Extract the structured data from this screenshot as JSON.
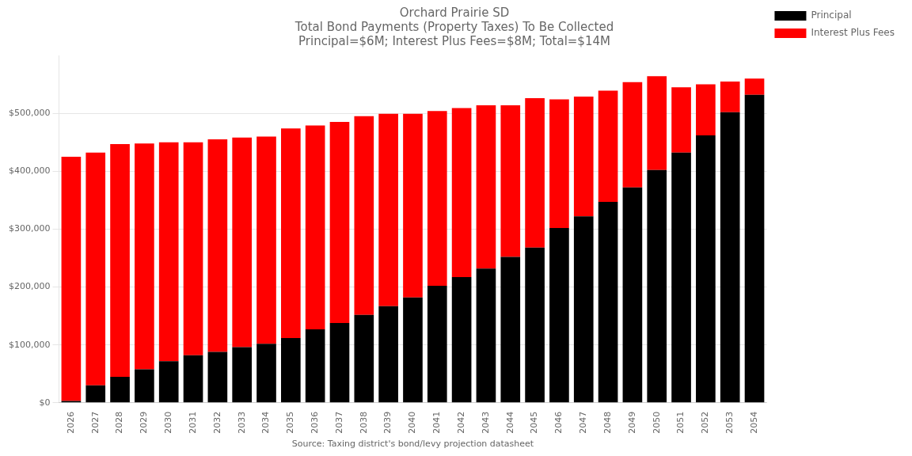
{
  "chart_data": {
    "type": "bar",
    "title": "Orchard Prairie SD\nTotal Bond Payments (Property Taxes) To Be Collected\nPrincipal=$6M; Interest Plus Fees=$8M; Total=$14M",
    "xlabel": "Source: Taxing district's bond/levy projection datasheet",
    "categories": [
      "2026",
      "2027",
      "2028",
      "2029",
      "2030",
      "2031",
      "2032",
      "2033",
      "2034",
      "2035",
      "2036",
      "2037",
      "2038",
      "2039",
      "2040",
      "2041",
      "2042",
      "2043",
      "2044",
      "2045",
      "2046",
      "2047",
      "2048",
      "2049",
      "2050",
      "2051",
      "2052",
      "2053",
      "2054"
    ],
    "series": [
      {
        "name": "Principal",
        "color": "#000000",
        "values": [
          3000,
          30000,
          45000,
          58000,
          72000,
          82000,
          88000,
          96000,
          102000,
          112000,
          127000,
          138000,
          152000,
          167000,
          182000,
          202000,
          217000,
          232000,
          252000,
          268000,
          302000,
          322000,
          347000,
          372000,
          402000,
          432000,
          462000,
          502000,
          532000
        ]
      },
      {
        "name": "Interest Plus Fees",
        "color": "#ff0000",
        "values": [
          422000,
          402000,
          402000,
          390000,
          378000,
          368000,
          367000,
          362000,
          358000,
          362000,
          352000,
          347000,
          343000,
          332000,
          317000,
          302000,
          292000,
          282000,
          262000,
          258000,
          222000,
          207000,
          192000,
          182000,
          162000,
          113000,
          88000,
          53000,
          28000
        ]
      }
    ],
    "stacked": true,
    "ylim": [
      0,
      600000
    ],
    "yticks": [
      {
        "value": 0,
        "label": "$0"
      },
      {
        "value": 100000,
        "label": "$100,000"
      },
      {
        "value": 200000,
        "label": "$200,000"
      },
      {
        "value": 300000,
        "label": "$300,000"
      },
      {
        "value": 400000,
        "label": "$400,000"
      },
      {
        "value": 500000,
        "label": "$500,000"
      }
    ],
    "grid": true,
    "legend": "right"
  }
}
